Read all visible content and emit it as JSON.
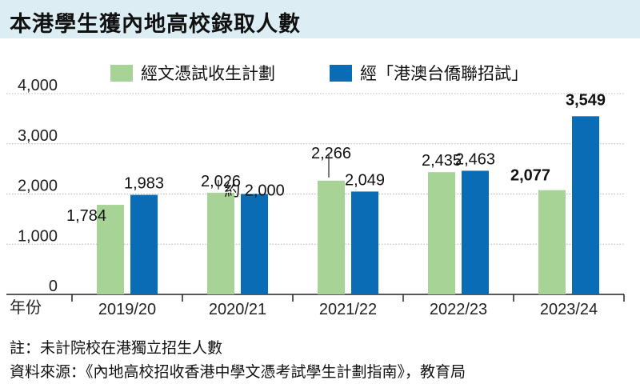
{
  "title": "本港學生獲內地高校錄取人數",
  "colors": {
    "green": "#a7d496",
    "blue": "#0a6cb5",
    "title_bg": "#dceef4"
  },
  "chart_data": {
    "type": "bar",
    "title": "本港學生獲內地高校錄取人數",
    "xlabel": "年份",
    "ylabel": "",
    "ylim": [
      0,
      4000
    ],
    "yticks": [
      "0",
      "1,000",
      "2,000",
      "3,000",
      "4,000"
    ],
    "grid": true,
    "legend_placement": "top",
    "categories": [
      "2019/20",
      "2020/21",
      "2021/22",
      "2022/23",
      "2023/24"
    ],
    "series": [
      {
        "name": "經文憑試收生計劃",
        "color": "#a7d496",
        "values": [
          1784,
          2026,
          2266,
          2435,
          2077
        ],
        "labels": [
          "1,784",
          "2,026",
          "2,266",
          "2,435",
          "2,077"
        ]
      },
      {
        "name": "經「港澳台僑聯招試」",
        "color": "#0a6cb5",
        "values": [
          1983,
          2000,
          2049,
          2463,
          3549
        ],
        "labels": [
          "1,983",
          "約 2,000",
          "2,049",
          "2,463",
          "3,549"
        ]
      }
    ]
  },
  "notes": {
    "note": "註：未計院校在港獨立招生人數",
    "source": "資料來源：《內地高校招收香港中學文憑考試學生計劃指南》，教育局"
  }
}
